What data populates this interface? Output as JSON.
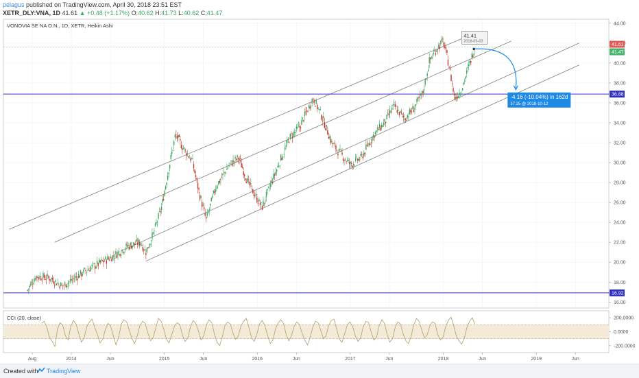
{
  "header": {
    "author": "pelagus",
    "published_text": "published on TradingView.com, April 30, 2018 23:51 EST",
    "symbol": "XETR_DLY:VNA, 1D",
    "last": "41.61",
    "change": "▲ +0.48 (+1.17%)",
    "o_label": "O:",
    "o_value": "40.62",
    "h_label": "H:",
    "h_value": "41.73",
    "l_label": "L:",
    "l_value": "40.62",
    "c_label": "C:",
    "c_value": "41.47"
  },
  "footer": {
    "created": "Created with",
    "brand": "TradingView"
  },
  "colors": {
    "up": "#3aa760",
    "down": "#c0392b",
    "channel": "#8c8c8c",
    "hline": "#3030c0",
    "projection": "#1e88e5",
    "cci": "#b59b6a",
    "cci_band": "#f3ead8",
    "red_label": "#e35757",
    "green_label": "#46b36e"
  },
  "chart_data": [
    {
      "type": "candlestick",
      "title": "VONOVIA SE NA O.N., 1D, XETR, Heikin Ashi",
      "x_tick_labels": [
        "Aug",
        "2014",
        "Jun",
        "2015",
        "Jun",
        "2016",
        "Jun",
        "2017",
        "Jun",
        "2018",
        "Jun",
        "2019",
        "Jun"
      ],
      "y_tick_labels": [
        "44.00",
        "42.00",
        "40.00",
        "38.00",
        "36.00",
        "34.00",
        "32.00",
        "30.00",
        "28.00",
        "26.00",
        "24.00",
        "22.00",
        "20.00",
        "18.00",
        "16.00"
      ],
      "ylim": [
        15.4,
        44.4
      ],
      "price_path": [
        {
          "t": 2013.53,
          "p": 17.2
        },
        {
          "t": 2013.62,
          "p": 18.6
        },
        {
          "t": 2013.78,
          "p": 18.4
        },
        {
          "t": 2013.9,
          "p": 17.6
        },
        {
          "t": 2014.0,
          "p": 18.2
        },
        {
          "t": 2014.2,
          "p": 19.4
        },
        {
          "t": 2014.45,
          "p": 20.6
        },
        {
          "t": 2014.6,
          "p": 21.6
        },
        {
          "t": 2014.75,
          "p": 22.0
        },
        {
          "t": 2014.8,
          "p": 21.0
        },
        {
          "t": 2014.88,
          "p": 22.8
        },
        {
          "t": 2014.97,
          "p": 25.5
        },
        {
          "t": 2015.05,
          "p": 29.5
        },
        {
          "t": 2015.12,
          "p": 32.8
        },
        {
          "t": 2015.2,
          "p": 31.5
        },
        {
          "t": 2015.3,
          "p": 30.2
        },
        {
          "t": 2015.37,
          "p": 27.2
        },
        {
          "t": 2015.45,
          "p": 24.2
        },
        {
          "t": 2015.55,
          "p": 27.5
        },
        {
          "t": 2015.7,
          "p": 29.8
        },
        {
          "t": 2015.8,
          "p": 30.5
        },
        {
          "t": 2015.9,
          "p": 28.0
        },
        {
          "t": 2016.05,
          "p": 25.5
        },
        {
          "t": 2016.12,
          "p": 27.2
        },
        {
          "t": 2016.25,
          "p": 30.3
        },
        {
          "t": 2016.35,
          "p": 32.5
        },
        {
          "t": 2016.45,
          "p": 33.5
        },
        {
          "t": 2016.6,
          "p": 36.5
        },
        {
          "t": 2016.7,
          "p": 34.5
        },
        {
          "t": 2016.8,
          "p": 32.0
        },
        {
          "t": 2016.9,
          "p": 30.8
        },
        {
          "t": 2017.0,
          "p": 29.8
        },
        {
          "t": 2017.12,
          "p": 30.5
        },
        {
          "t": 2017.25,
          "p": 32.8
        },
        {
          "t": 2017.37,
          "p": 34.0
        },
        {
          "t": 2017.47,
          "p": 35.7
        },
        {
          "t": 2017.58,
          "p": 34.4
        },
        {
          "t": 2017.68,
          "p": 35.4
        },
        {
          "t": 2017.78,
          "p": 37.0
        },
        {
          "t": 2017.85,
          "p": 40.2
        },
        {
          "t": 2017.93,
          "p": 41.5
        },
        {
          "t": 2018.0,
          "p": 42.2
        },
        {
          "t": 2018.06,
          "p": 39.8
        },
        {
          "t": 2018.12,
          "p": 36.5
        },
        {
          "t": 2018.19,
          "p": 37.2
        },
        {
          "t": 2018.27,
          "p": 39.5
        },
        {
          "t": 2018.33,
          "p": 41.4
        }
      ],
      "channel_lines": [
        {
          "t1": 2013.33,
          "p1": 23.3,
          "t2": 2018.34,
          "p2": 43.0
        },
        {
          "t1": 2013.82,
          "p1": 22.0,
          "t2": 2018.73,
          "p2": 42.2
        },
        {
          "t1": 2014.53,
          "p1": 21.1,
          "t2": 2019.46,
          "p2": 42.0
        },
        {
          "t1": 2014.8,
          "p1": 20.1,
          "t2": 2019.46,
          "p2": 39.8
        }
      ],
      "horizontal_lines": [
        {
          "price": 36.88,
          "label": "36.88"
        },
        {
          "price": 16.92,
          "label": "16.92"
        }
      ],
      "price_labels": [
        {
          "price": 41.61,
          "label": "41.61",
          "kind": "red"
        },
        {
          "price": 41.47,
          "label": "41.47",
          "kind": "green"
        }
      ],
      "callout": {
        "price_text": "41.41",
        "date_text": "2018-05-03",
        "t": 2018.33,
        "p": 41.41
      },
      "projection": {
        "from_t": 2018.33,
        "from_p": 41.41,
        "to_t": 2018.78,
        "to_p": 37.25,
        "change_text": "-4.16 (-10.04%) in 162d",
        "target_text": "37.25 @ 2018-10-12"
      }
    },
    {
      "type": "line",
      "title": "CCI (20, close)",
      "y_tick_labels": [
        "200.0000",
        "0.0000",
        "-200.0000"
      ],
      "ylim": [
        -300,
        300
      ],
      "band": [
        -100,
        100
      ],
      "values": [
        120,
        150,
        60,
        -80,
        -140,
        -210,
        40,
        130,
        90,
        -60,
        -120,
        80,
        160,
        110,
        -30,
        -150,
        -90,
        70,
        140,
        180,
        60,
        -40,
        -160,
        -110,
        30,
        120,
        80,
        -60,
        -190,
        -80,
        110,
        170,
        140,
        20,
        -100,
        -170,
        -60,
        90,
        150,
        120,
        -20,
        -130,
        -80,
        60,
        190,
        150,
        30,
        -110,
        -160,
        -40,
        80,
        130,
        100,
        -50,
        -140,
        -90,
        70,
        160,
        120,
        10,
        -120,
        -60,
        100,
        170,
        130,
        -30,
        -150,
        -200,
        -70,
        90,
        140,
        110,
        -20,
        -110,
        -60,
        80,
        150,
        190,
        60,
        -90,
        -140,
        -30,
        110,
        160,
        90,
        -50,
        -170,
        -120,
        40,
        130,
        170,
        120,
        -40,
        -130,
        -60,
        80,
        140,
        100,
        -20,
        -120,
        -190,
        -80,
        60,
        150,
        130,
        20,
        -100,
        -60,
        90,
        160,
        180,
        40,
        -110,
        -150,
        -30,
        100,
        140,
        80,
        -60,
        -140,
        -90,
        70,
        150,
        130,
        -10,
        -120,
        -80,
        90,
        170,
        120,
        -40,
        -150,
        -100,
        60,
        140,
        110,
        -30,
        -130,
        -170,
        -70,
        100,
        190,
        150,
        30,
        -90,
        -50,
        80,
        140,
        120,
        -40,
        -120,
        -80,
        70,
        160,
        210,
        90,
        -60,
        -130,
        -180,
        -90,
        60,
        150,
        200,
        110
      ]
    }
  ]
}
